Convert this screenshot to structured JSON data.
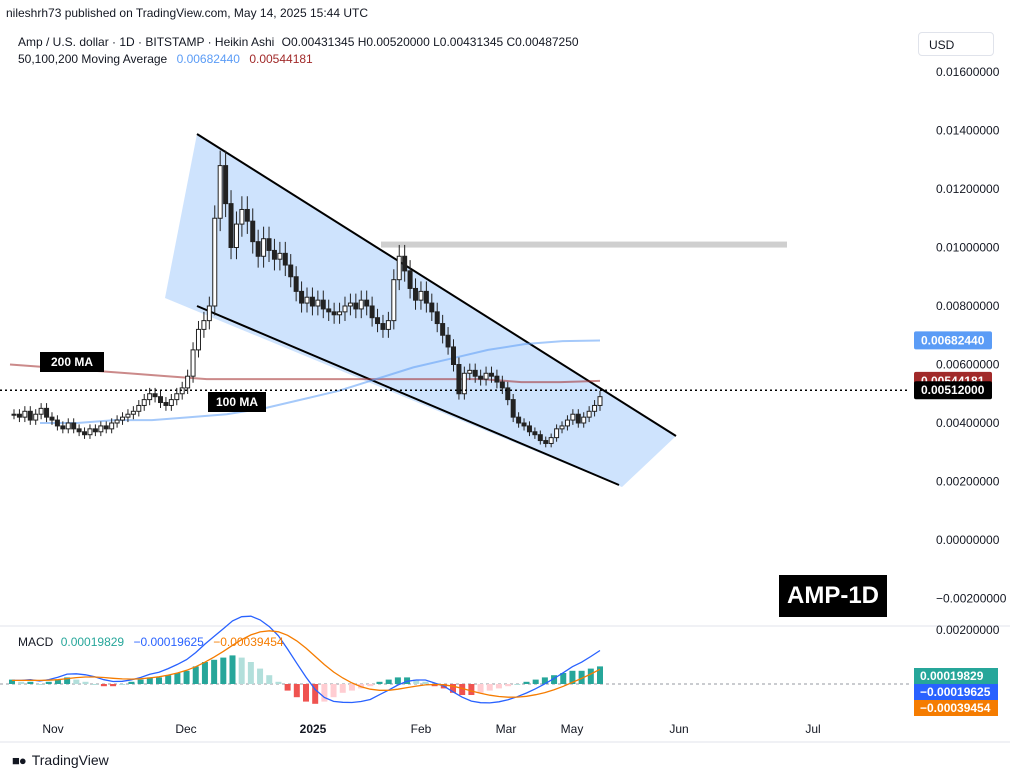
{
  "header": {
    "published": "nileshrh73 published on TradingView.com, May 14, 2025 15:44 UTC",
    "symbol": "Amp / U.S. dollar · 1D · BITSTAMP · Heikin Ashi",
    "ohlc": "O0.00431345 H0.00520000 L0.00431345 C0.00487250",
    "ma_label": "50,100,200 Moving Average",
    "ma100_value": "0.00682440",
    "ma200_value": "0.00544181",
    "currency": "USD"
  },
  "macd": {
    "label": "MACD",
    "hist_value": "0.00019829",
    "macd_value": "−0.00019625",
    "signal_value": "−0.00039454"
  },
  "brand": {
    "name": "TradingView"
  },
  "badge": "AMP-1D",
  "annotations": {
    "ma200": "200 MA",
    "ma100": "100 MA"
  },
  "colors": {
    "up": "#26a69a",
    "down": "#ef5350",
    "ma100": "#5b9cf6",
    "ma200": "#a12a2a",
    "channel": "#b3d4fc",
    "macd": "#2962ff",
    "signal": "#f57c00"
  },
  "chart_data": {
    "type": "candlestick",
    "y_axis": {
      "range": [
        -0.0024,
        0.0172
      ],
      "ticks": [
        "0.01600000",
        "0.01400000",
        "0.01200000",
        "0.01000000",
        "0.00800000",
        "0.00600000",
        "0.00400000",
        "0.00200000",
        "0.00000000",
        "−0.00200000"
      ],
      "labels_marked": [
        {
          "text": "0.00682440",
          "color": "#5b9cf6",
          "value": 0.0068244
        },
        {
          "text": "0.00544181",
          "color": "#a12a2a",
          "value": 0.00544181
        },
        {
          "text": "0.00512000",
          "color": "#000000",
          "value": 0.00512
        }
      ]
    },
    "x_axis": {
      "ticks": [
        "Nov",
        "Dec",
        "2025",
        "Feb",
        "Mar",
        "May",
        "Jun",
        "Jul"
      ]
    },
    "price_close": [
      0.0043,
      0.0042,
      0.0044,
      0.0041,
      0.0043,
      0.0045,
      0.0042,
      0.0041,
      0.0039,
      0.0038,
      0.004,
      0.0038,
      0.0037,
      0.0036,
      0.0038,
      0.0037,
      0.0039,
      0.0038,
      0.004,
      0.0041,
      0.0042,
      0.0043,
      0.0044,
      0.0046,
      0.0048,
      0.005,
      0.0049,
      0.0047,
      0.0046,
      0.0048,
      0.005,
      0.0052,
      0.0056,
      0.0065,
      0.0072,
      0.0075,
      0.008,
      0.011,
      0.0128,
      0.0115,
      0.01,
      0.0108,
      0.0113,
      0.0109,
      0.0102,
      0.0097,
      0.0103,
      0.0099,
      0.0096,
      0.0098,
      0.0094,
      0.009,
      0.0085,
      0.0081,
      0.0083,
      0.008,
      0.0082,
      0.0079,
      0.0078,
      0.0077,
      0.0078,
      0.008,
      0.0081,
      0.0079,
      0.0082,
      0.008,
      0.0076,
      0.0074,
      0.0072,
      0.0075,
      0.0089,
      0.0097,
      0.0092,
      0.0086,
      0.0082,
      0.0085,
      0.0081,
      0.0078,
      0.0074,
      0.007,
      0.0066,
      0.006,
      0.005,
      0.0057,
      0.0058,
      0.0056,
      0.0055,
      0.0057,
      0.0056,
      0.0054,
      0.0052,
      0.0048,
      0.0042,
      0.004,
      0.0039,
      0.0037,
      0.0036,
      0.0034,
      0.0033,
      0.0035,
      0.0038,
      0.0039,
      0.0041,
      0.0043,
      0.004,
      0.0042,
      0.0044,
      0.0046,
      0.0049
    ],
    "ma100": [
      0.004,
      0.004,
      0.0041,
      0.0041,
      0.0042,
      0.0043,
      0.0045,
      0.0048,
      0.0051,
      0.0055,
      0.0059,
      0.0062,
      0.0065,
      0.0067,
      0.0068,
      0.00682
    ],
    "ma200": [
      0.006,
      0.0059,
      0.0058,
      0.0057,
      0.0056,
      0.0055,
      0.0055,
      0.0055,
      0.0055,
      0.0055,
      0.0055,
      0.0055,
      0.0055,
      0.0054,
      0.0054,
      0.00544
    ],
    "channel_upper": [
      [
        0.0138,
        "Dec"
      ],
      [
        0.0035,
        "after May"
      ]
    ],
    "channel_lower": [
      [
        0.0082,
        "Dec"
      ],
      [
        0.0019,
        "after May"
      ]
    ],
    "resistance_level": 0.0101,
    "current_price": 0.00512,
    "macd_hist": [
      0.2,
      0.1,
      0.1,
      0.0,
      0.1,
      0.2,
      0.3,
      0.2,
      0.1,
      0.0,
      -0.1,
      -0.1,
      0.0,
      0.1,
      0.2,
      0.3,
      0.3,
      0.4,
      0.5,
      0.6,
      0.8,
      1.0,
      1.1,
      1.2,
      1.3,
      1.2,
      1.0,
      0.7,
      0.4,
      0.1,
      -0.3,
      -0.6,
      -0.8,
      -0.9,
      -0.8,
      -0.6,
      -0.4,
      -0.3,
      -0.2,
      -0.1,
      0.1,
      0.2,
      0.3,
      0.3,
      0.2,
      0.1,
      -0.1,
      -0.2,
      -0.4,
      -0.5,
      -0.5,
      -0.4,
      -0.3,
      -0.2,
      -0.1,
      0.0,
      0.1,
      0.2,
      0.3,
      0.4,
      0.5,
      0.6,
      0.6,
      0.7,
      0.8
    ]
  }
}
